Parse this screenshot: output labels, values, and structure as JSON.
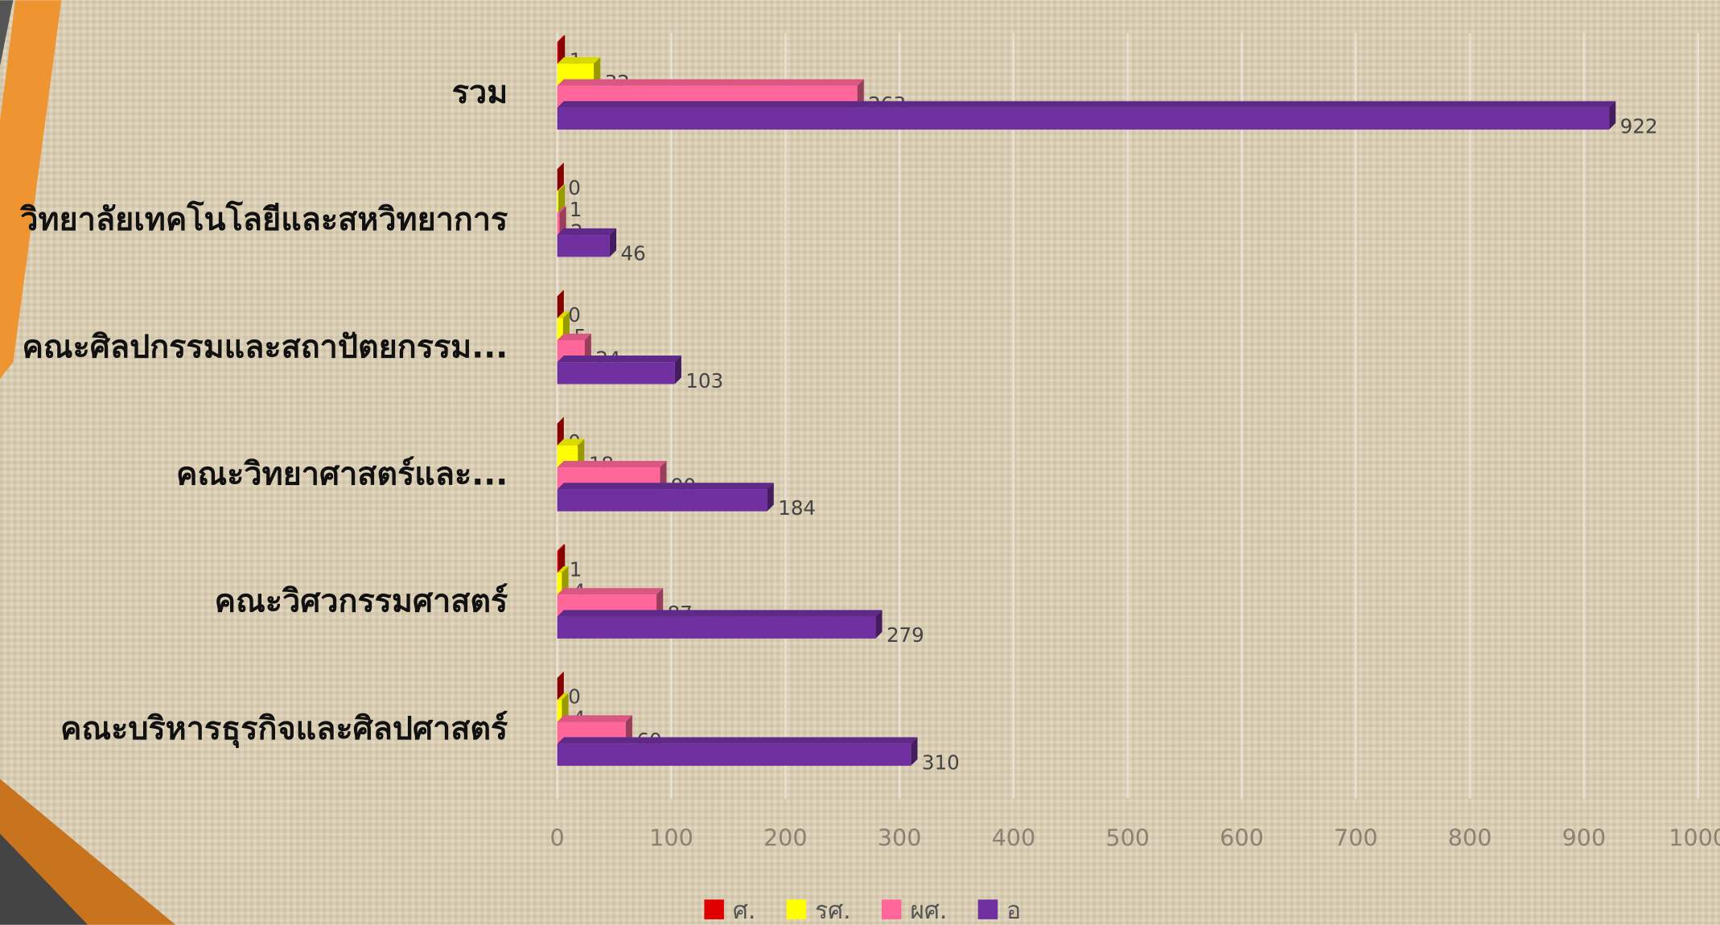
{
  "chart_data": {
    "type": "bar",
    "orientation": "horizontal",
    "categories": [
      "รวม",
      "วิทยาลัยเทคโนโลยีและสหวิทยาการ",
      "คณะศิลปกรรมและสถาปัตยกรรม...",
      "คณะวิทยาศาสตร์และ...",
      "คณะวิศวกรรมศาสตร์",
      "คณะบริหารธุรกิจและศิลปศาสตร์"
    ],
    "series": [
      {
        "name": "ศ.",
        "color": "#e00000",
        "values": [
          1,
          0,
          0,
          0,
          1,
          0
        ]
      },
      {
        "name": "รศ.",
        "color": "#ffff00",
        "values": [
          32,
          1,
          5,
          18,
          4,
          4
        ]
      },
      {
        "name": "ผศ.",
        "color": "#ff6699",
        "values": [
          263,
          2,
          24,
          90,
          87,
          60
        ]
      },
      {
        "name": "อ",
        "color": "#7030a0",
        "values": [
          922,
          46,
          103,
          184,
          279,
          310
        ]
      }
    ],
    "xlim": [
      0,
      1000
    ],
    "xticks": [
      0,
      100,
      200,
      300,
      400,
      500,
      600,
      700,
      800,
      900,
      1000
    ],
    "grid": true,
    "legend": "bottom"
  }
}
